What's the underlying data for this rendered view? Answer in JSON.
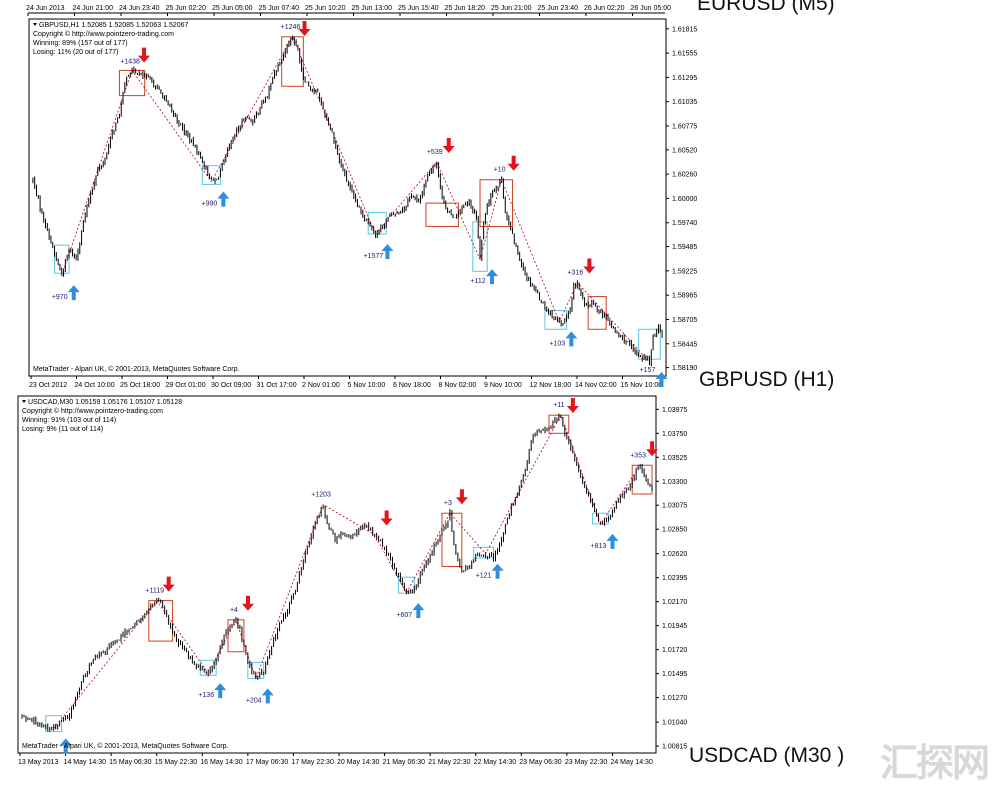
{
  "top_time_labels": [
    "24 Jun 2013",
    "24 Jun 21:00",
    "24 Jun 23:40",
    "25 Jun 02:20",
    "25 Jun 05:00",
    "25 Jun 07:40",
    "25 Jun 10:20",
    "25 Jun 13:00",
    "25 Jun 15:40",
    "25 Jun 18:20",
    "25 Jun 21:00",
    "25 Jun 23:40",
    "26 Jun 02:20",
    "26 Jun 05:00"
  ],
  "chart_labels": {
    "eurusd": "EURUSD (M5)",
    "gbpusd": "GBPUSD (H1)",
    "usdcad": "USDCAD (M30 )"
  },
  "watermark": "汇探网",
  "colors": {
    "up_arrow": "#2e8fe0",
    "down_arrow": "#e0161c",
    "candle": "#000000",
    "zigzag": "#b0003a",
    "up_box": "#58c8e8",
    "down_box": "#d04020"
  },
  "chart_data": [
    {
      "id": "gbpusd",
      "type": "candlestick",
      "header": {
        "symbol_line": "GBPUSD,H1  1.52085 1.52085 1.52063 1.52067",
        "copyright": "Copyright © http://www.pointzero-trading.com",
        "winning": "Winning: 89% (157 out of 177)",
        "losing": "Losing: 11% (20 out of 177)"
      },
      "footer": "MetaTrader - Alpari UK, © 2001-2013, MetaQuotes Software Corp.",
      "y_ticks": [
        "1.61815",
        "1.61555",
        "1.61295",
        "1.61035",
        "1.60775",
        "1.60520",
        "1.60260",
        "1.60000",
        "1.59740",
        "1.59485",
        "1.59225",
        "1.58965",
        "1.58705",
        "1.58445",
        "1.58190"
      ],
      "ylim": [
        1.581,
        1.6192
      ],
      "x_ticks": [
        "23 Oct 2012",
        "24 Oct 10:00",
        "25 Oct 18:00",
        "29 Oct 01:00",
        "30 Oct 09:00",
        "31 Oct 17:00",
        "2 Nov 01:00",
        "5 Nov 10:00",
        "6 Nov 18:00",
        "8 Nov 02:00",
        "9 Nov 10:00",
        "12 Nov 18:00",
        "14 Nov 02:00",
        "15 Nov 10:00"
      ],
      "series_path": [
        [
          0,
          1.602
        ],
        [
          4,
          1.599
        ],
        [
          9,
          1.596
        ],
        [
          12,
          1.594
        ],
        [
          16,
          1.5918
        ],
        [
          20,
          1.5945
        ],
        [
          24,
          1.5935
        ],
        [
          28,
          1.5975
        ],
        [
          32,
          1.6005
        ],
        [
          36,
          1.603
        ],
        [
          40,
          1.6042
        ],
        [
          44,
          1.607
        ],
        [
          48,
          1.609
        ],
        [
          52,
          1.6132
        ],
        [
          56,
          1.6137
        ],
        [
          62,
          1.613
        ],
        [
          66,
          1.6125
        ],
        [
          72,
          1.611
        ],
        [
          78,
          1.609
        ],
        [
          84,
          1.6072
        ],
        [
          90,
          1.6055
        ],
        [
          96,
          1.6032
        ],
        [
          99,
          1.6018
        ],
        [
          102,
          1.602
        ],
        [
          106,
          1.604
        ],
        [
          110,
          1.606
        ],
        [
          114,
          1.6075
        ],
        [
          118,
          1.6088
        ],
        [
          122,
          1.6082
        ],
        [
          126,
          1.6098
        ],
        [
          130,
          1.611
        ],
        [
          134,
          1.6135
        ],
        [
          138,
          1.615
        ],
        [
          142,
          1.6168
        ],
        [
          144,
          1.6173
        ],
        [
          147,
          1.6158
        ],
        [
          150,
          1.613
        ],
        [
          154,
          1.6118
        ],
        [
          158,
          1.6112
        ],
        [
          162,
          1.609
        ],
        [
          166,
          1.607
        ],
        [
          170,
          1.604
        ],
        [
          174,
          1.602
        ],
        [
          178,
          1.6
        ],
        [
          182,
          1.5985
        ],
        [
          186,
          1.5975
        ],
        [
          190,
          1.5962
        ],
        [
          194,
          1.597
        ],
        [
          198,
          1.5982
        ],
        [
          202,
          1.5985
        ],
        [
          206,
          1.599
        ],
        [
          210,
          1.6005
        ],
        [
          214,
          1.5995
        ],
        [
          218,
          1.602
        ],
        [
          222,
          1.6035
        ],
        [
          224,
          1.6039
        ],
        [
          226,
          1.601
        ],
        [
          230,
          1.5985
        ],
        [
          234,
          1.598
        ],
        [
          238,
          1.599
        ],
        [
          242,
          1.5995
        ],
        [
          246,
          1.598
        ],
        [
          248,
          1.5935
        ],
        [
          250,
          1.5975
        ],
        [
          254,
          1.6005
        ],
        [
          258,
          1.6015
        ],
        [
          260,
          1.602
        ],
        [
          262,
          1.5985
        ],
        [
          266,
          1.596
        ],
        [
          270,
          1.5935
        ],
        [
          274,
          1.5915
        ],
        [
          278,
          1.5905
        ],
        [
          282,
          1.589
        ],
        [
          286,
          1.5878
        ],
        [
          290,
          1.5872
        ],
        [
          294,
          1.5865
        ],
        [
          298,
          1.588
        ],
        [
          300,
          1.5905
        ],
        [
          302,
          1.591
        ],
        [
          306,
          1.5885
        ],
        [
          310,
          1.5888
        ],
        [
          314,
          1.588
        ],
        [
          318,
          1.5872
        ],
        [
          322,
          1.586
        ],
        [
          326,
          1.5852
        ],
        [
          330,
          1.5845
        ],
        [
          334,
          1.5835
        ],
        [
          338,
          1.583
        ],
        [
          340,
          1.583
        ],
        [
          342,
          1.5825
        ],
        [
          344,
          1.585
        ],
        [
          347,
          1.5865
        ],
        [
          349,
          1.5852
        ]
      ],
      "zigzag": [
        [
          16,
          1.5918
        ],
        [
          55,
          1.6137
        ],
        [
          99,
          1.6018
        ],
        [
          144,
          1.6173
        ],
        [
          190,
          1.5962
        ],
        [
          224,
          1.6039
        ],
        [
          248,
          1.5935
        ],
        [
          260,
          1.602
        ],
        [
          292,
          1.5868
        ],
        [
          302,
          1.591
        ],
        [
          342,
          1.5825
        ]
      ],
      "signals": [
        {
          "i": 55,
          "dir": "down",
          "label": "+1438"
        },
        {
          "i": 99,
          "dir": "up",
          "label": "+990"
        },
        {
          "i": 144,
          "dir": "down",
          "label": "+1246"
        },
        {
          "i": 16,
          "dir": "up",
          "label": "+970"
        },
        {
          "i": 190,
          "dir": "up",
          "label": "+1577"
        },
        {
          "i": 224,
          "dir": "down",
          "label": "+539"
        },
        {
          "i": 248,
          "dir": "up",
          "label": "+112"
        },
        {
          "i": 260,
          "dir": "down",
          "label": "+10"
        },
        {
          "i": 292,
          "dir": "up",
          "label": "+103"
        },
        {
          "i": 302,
          "dir": "down",
          "label": "+316"
        },
        {
          "i": 342,
          "dir": "up",
          "label": "+157"
        }
      ],
      "boxes": [
        {
          "i0": 12,
          "i1": 20,
          "p0": 1.592,
          "p1": 1.595,
          "kind": "up"
        },
        {
          "i0": 48,
          "i1": 62,
          "p0": 1.611,
          "p1": 1.6137,
          "kind": "down"
        },
        {
          "i0": 94,
          "i1": 104,
          "p0": 1.6015,
          "p1": 1.6035,
          "kind": "up"
        },
        {
          "i0": 138,
          "i1": 150,
          "p0": 1.612,
          "p1": 1.6173,
          "kind": "down"
        },
        {
          "i0": 186,
          "i1": 196,
          "p0": 1.5962,
          "p1": 1.5985,
          "kind": "up"
        },
        {
          "i0": 218,
          "i1": 236,
          "p0": 1.597,
          "p1": 1.5995,
          "kind": "down"
        },
        {
          "i0": 244,
          "i1": 252,
          "p0": 1.5922,
          "p1": 1.5975,
          "kind": "up"
        },
        {
          "i0": 248,
          "i1": 266,
          "p0": 1.597,
          "p1": 1.602,
          "kind": "down"
        },
        {
          "i0": 284,
          "i1": 296,
          "p0": 1.586,
          "p1": 1.588,
          "kind": "up"
        },
        {
          "i0": 308,
          "i1": 318,
          "p0": 1.586,
          "p1": 1.5895,
          "kind": "down"
        },
        {
          "i0": 336,
          "i1": 348,
          "p0": 1.5828,
          "p1": 1.586,
          "kind": "up"
        }
      ]
    },
    {
      "id": "usdcad",
      "type": "candlestick",
      "header": {
        "symbol_line": "USDCAD,M30  1.05159 1.05176 1.05107 1.05128",
        "copyright": "Copyright © http://www.pointzero-trading.com",
        "winning": "Winning: 91% (103 out of 114)",
        "losing": "Losing: 9% (11 out of 114)"
      },
      "footer": "MetaTrader - Alpari UK, © 2001-2013, MetaQuotes Software Corp.",
      "y_ticks": [
        "1.03975",
        "1.03750",
        "1.03525",
        "1.03300",
        "1.03075",
        "1.02850",
        "1.02620",
        "1.02395",
        "1.02170",
        "1.01945",
        "1.01720",
        "1.01495",
        "1.01270",
        "1.01040",
        "1.00815"
      ],
      "ylim": [
        1.0075,
        1.041
      ],
      "x_ticks": [
        "13 May 2013",
        "14 May 14:30",
        "15 May 06:30",
        "15 May 22:30",
        "16 May 14:30",
        "17 May 06:30",
        "17 May 22:30",
        "20 May 14:30",
        "21 May 06:30",
        "21 May 22:30",
        "22 May 14:30",
        "23 May 06:30",
        "23 May 22:30",
        "24 May 14:30"
      ],
      "series_path": [
        [
          0,
          1.011
        ],
        [
          6,
          1.0105
        ],
        [
          12,
          1.01
        ],
        [
          16,
          1.0098
        ],
        [
          20,
          1.0105
        ],
        [
          24,
          1.011
        ],
        [
          28,
          1.013
        ],
        [
          32,
          1.015
        ],
        [
          36,
          1.0162
        ],
        [
          40,
          1.0168
        ],
        [
          44,
          1.0175
        ],
        [
          48,
          1.018
        ],
        [
          52,
          1.0188
        ],
        [
          56,
          1.0195
        ],
        [
          60,
          1.02
        ],
        [
          64,
          1.021
        ],
        [
          68,
          1.0218
        ],
        [
          70,
          1.0215
        ],
        [
          74,
          1.0198
        ],
        [
          78,
          1.018
        ],
        [
          82,
          1.0172
        ],
        [
          86,
          1.016
        ],
        [
          90,
          1.0155
        ],
        [
          94,
          1.015
        ],
        [
          98,
          1.0162
        ],
        [
          102,
          1.0185
        ],
        [
          106,
          1.0195
        ],
        [
          108,
          1.02
        ],
        [
          110,
          1.019
        ],
        [
          114,
          1.016
        ],
        [
          118,
          1.0145
        ],
        [
          122,
          1.0152
        ],
        [
          126,
          1.0175
        ],
        [
          130,
          1.0195
        ],
        [
          134,
          1.021
        ],
        [
          138,
          1.023
        ],
        [
          142,
          1.0255
        ],
        [
          146,
          1.028
        ],
        [
          150,
          1.03
        ],
        [
          152,
          1.0308
        ],
        [
          154,
          1.029
        ],
        [
          158,
          1.0275
        ],
        [
          162,
          1.028
        ],
        [
          166,
          1.0278
        ],
        [
          170,
          1.0285
        ],
        [
          174,
          1.0288
        ],
        [
          178,
          1.028
        ],
        [
          182,
          1.027
        ],
        [
          186,
          1.0255
        ],
        [
          190,
          1.024
        ],
        [
          194,
          1.0225
        ],
        [
          198,
          1.023
        ],
        [
          202,
          1.0245
        ],
        [
          206,
          1.0262
        ],
        [
          210,
          1.0275
        ],
        [
          214,
          1.029
        ],
        [
          216,
          1.03
        ],
        [
          218,
          1.027
        ],
        [
          222,
          1.0245
        ],
        [
          226,
          1.025
        ],
        [
          230,
          1.0262
        ],
        [
          234,
          1.0262
        ],
        [
          238,
          1.0258
        ],
        [
          242,
          1.0275
        ],
        [
          246,
          1.03
        ],
        [
          250,
          1.032
        ],
        [
          254,
          1.034
        ],
        [
          256,
          1.036
        ],
        [
          258,
          1.0372
        ],
        [
          262,
          1.0378
        ],
        [
          266,
          1.038
        ],
        [
          270,
          1.0388
        ],
        [
          272,
          1.0392
        ],
        [
          274,
          1.0375
        ],
        [
          278,
          1.0355
        ],
        [
          282,
          1.0335
        ],
        [
          286,
          1.0315
        ],
        [
          290,
          1.0298
        ],
        [
          292,
          1.029
        ],
        [
          296,
          1.0295
        ],
        [
          300,
          1.031
        ],
        [
          304,
          1.032
        ],
        [
          308,
          1.033
        ],
        [
          310,
          1.034
        ],
        [
          312,
          1.0345
        ],
        [
          314,
          1.0335
        ],
        [
          318,
          1.032
        ]
      ],
      "zigzag": [
        [
          16,
          1.0098
        ],
        [
          68,
          1.0218
        ],
        [
          94,
          1.015
        ],
        [
          108,
          1.02
        ],
        [
          118,
          1.0145
        ],
        [
          152,
          1.0308
        ],
        [
          178,
          1.028
        ],
        [
          194,
          1.0225
        ],
        [
          216,
          1.03
        ],
        [
          234,
          1.0262
        ],
        [
          272,
          1.0392
        ],
        [
          292,
          1.029
        ],
        [
          312,
          1.0345
        ]
      ],
      "signals": [
        {
          "i": 16,
          "dir": "up",
          "label": ""
        },
        {
          "i": 68,
          "dir": "down",
          "label": "+1119"
        },
        {
          "i": 94,
          "dir": "up",
          "label": "+136"
        },
        {
          "i": 108,
          "dir": "down",
          "label": "+4"
        },
        {
          "i": 118,
          "dir": "up",
          "label": "+204"
        },
        {
          "i": 152,
          "dir": "none",
          "label": "+1203"
        },
        {
          "i": 178,
          "dir": "down",
          "label": ""
        },
        {
          "i": 194,
          "dir": "up",
          "label": "+607"
        },
        {
          "i": 216,
          "dir": "down",
          "label": "+3"
        },
        {
          "i": 234,
          "dir": "up",
          "label": "+121"
        },
        {
          "i": 272,
          "dir": "down",
          "label": "+11"
        },
        {
          "i": 292,
          "dir": "up",
          "label": "+813"
        },
        {
          "i": 312,
          "dir": "down",
          "label": "+353"
        }
      ],
      "boxes": [
        {
          "i0": 12,
          "i1": 20,
          "p0": 1.0095,
          "p1": 1.011,
          "kind": "up"
        },
        {
          "i0": 64,
          "i1": 76,
          "p0": 1.018,
          "p1": 1.0218,
          "kind": "down"
        },
        {
          "i0": 90,
          "i1": 98,
          "p0": 1.0148,
          "p1": 1.0162,
          "kind": "up"
        },
        {
          "i0": 104,
          "i1": 112,
          "p0": 1.017,
          "p1": 1.02,
          "kind": "down"
        },
        {
          "i0": 114,
          "i1": 122,
          "p0": 1.0145,
          "p1": 1.016,
          "kind": "up"
        },
        {
          "i0": 190,
          "i1": 198,
          "p0": 1.0225,
          "p1": 1.024,
          "kind": "up"
        },
        {
          "i0": 212,
          "i1": 222,
          "p0": 1.025,
          "p1": 1.03,
          "kind": "down"
        },
        {
          "i0": 228,
          "i1": 238,
          "p0": 1.0258,
          "p1": 1.0268,
          "kind": "up"
        },
        {
          "i0": 266,
          "i1": 276,
          "p0": 1.0375,
          "p1": 1.0392,
          "kind": "down"
        },
        {
          "i0": 288,
          "i1": 296,
          "p0": 1.029,
          "p1": 1.03,
          "kind": "up"
        },
        {
          "i0": 308,
          "i1": 318,
          "p0": 1.0318,
          "p1": 1.0345,
          "kind": "down"
        }
      ]
    }
  ]
}
